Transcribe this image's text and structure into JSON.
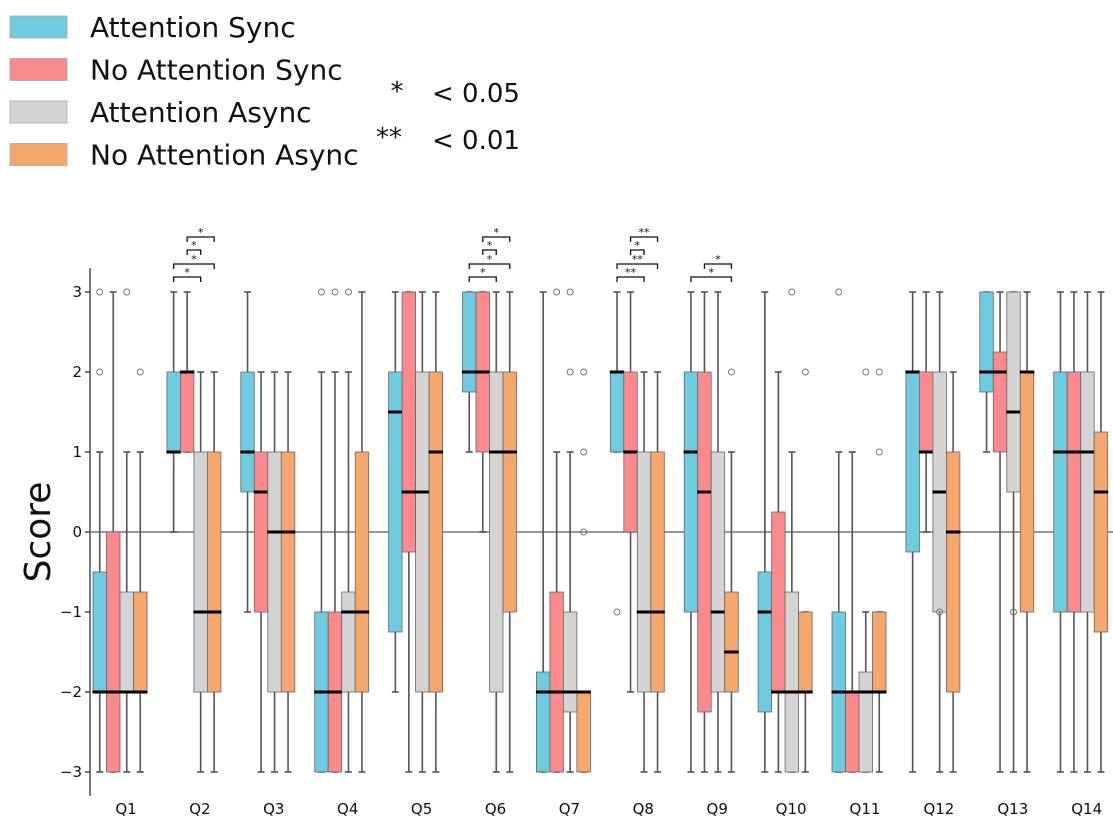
{
  "chart_data": {
    "type": "box",
    "title": "",
    "xlabel": "",
    "ylabel": "Score",
    "ylim": [
      -3,
      3
    ],
    "yticks": [
      -3,
      -2,
      -1,
      0,
      1,
      2,
      3
    ],
    "ytick_labels": [
      "−3",
      "−2",
      "−1",
      "0",
      "1",
      "2",
      "3"
    ],
    "reference_line_y": 0,
    "categories": [
      "Q1",
      "Q2",
      "Q3",
      "Q4",
      "Q5",
      "Q6",
      "Q7",
      "Q8",
      "Q9",
      "Q10",
      "Q11",
      "Q12",
      "Q13",
      "Q14"
    ],
    "legend_position": "top-left",
    "significance_legend": [
      {
        "symbol": "*",
        "label": "< 0.05"
      },
      {
        "symbol": "**",
        "label": "< 0.01"
      }
    ],
    "series": [
      {
        "name": "Attention Sync",
        "color": "#6ecbe0",
        "boxes": [
          {
            "whislo": -3,
            "q1": -2,
            "med": -2,
            "q3": -0.5,
            "whishi": 1,
            "fliers": [
              3,
              2
            ]
          },
          {
            "whislo": 0,
            "q1": 1,
            "med": 1,
            "q3": 2,
            "whishi": 3,
            "fliers": []
          },
          {
            "whislo": -1,
            "q1": 0.5,
            "med": 1,
            "q3": 2,
            "whishi": 3,
            "fliers": []
          },
          {
            "whislo": -3,
            "q1": -3,
            "med": -2,
            "q3": -1,
            "whishi": 2,
            "fliers": [
              3
            ]
          },
          {
            "whislo": -2,
            "q1": -1.25,
            "med": 1.5,
            "q3": 2,
            "whishi": 3,
            "fliers": []
          },
          {
            "whislo": 1,
            "q1": 1.75,
            "med": 2,
            "q3": 3,
            "whishi": 3,
            "fliers": []
          },
          {
            "whislo": -3,
            "q1": -3,
            "med": -2,
            "q3": -1.75,
            "whishi": 3,
            "fliers": []
          },
          {
            "whislo": 1,
            "q1": 1,
            "med": 2,
            "q3": 2,
            "whishi": 3,
            "fliers": [
              -1
            ]
          },
          {
            "whislo": -3,
            "q1": -1,
            "med": 1,
            "q3": 2,
            "whishi": 3,
            "fliers": []
          },
          {
            "whislo": -3,
            "q1": -2.25,
            "med": -1,
            "q3": -0.5,
            "whishi": 3,
            "fliers": []
          },
          {
            "whislo": -3,
            "q1": -3,
            "med": -2,
            "q3": -1,
            "whishi": 1,
            "fliers": [
              3
            ]
          },
          {
            "whislo": -3,
            "q1": -0.25,
            "med": 2,
            "q3": 2,
            "whishi": 3,
            "fliers": []
          },
          {
            "whislo": 1,
            "q1": 1.75,
            "med": 2,
            "q3": 3,
            "whishi": 3,
            "fliers": []
          },
          {
            "whislo": -3,
            "q1": -1,
            "med": 1,
            "q3": 2,
            "whishi": 3,
            "fliers": []
          }
        ]
      },
      {
        "name": "No Attention Sync",
        "color": "#fb8a8c",
        "boxes": [
          {
            "whislo": -3,
            "q1": -3,
            "med": -2,
            "q3": 0,
            "whishi": 3,
            "fliers": []
          },
          {
            "whislo": 1,
            "q1": 1,
            "med": 2,
            "q3": 2,
            "whishi": 3,
            "fliers": []
          },
          {
            "whislo": -3,
            "q1": -1,
            "med": 0.5,
            "q3": 1,
            "whishi": 2,
            "fliers": []
          },
          {
            "whislo": -3,
            "q1": -3,
            "med": -2,
            "q3": -1,
            "whishi": 2,
            "fliers": [
              3
            ]
          },
          {
            "whislo": -3,
            "q1": -0.25,
            "med": 0.5,
            "q3": 3,
            "whishi": 3,
            "fliers": []
          },
          {
            "whislo": 0,
            "q1": 1,
            "med": 2,
            "q3": 3,
            "whishi": 3,
            "fliers": []
          },
          {
            "whislo": -3,
            "q1": -3,
            "med": -2,
            "q3": -0.75,
            "whishi": 1,
            "fliers": [
              3
            ]
          },
          {
            "whislo": -2,
            "q1": 0,
            "med": 1,
            "q3": 2,
            "whishi": 3,
            "fliers": []
          },
          {
            "whislo": -3,
            "q1": -2.25,
            "med": 0.5,
            "q3": 2,
            "whishi": 3,
            "fliers": []
          },
          {
            "whislo": -3,
            "q1": -2,
            "med": -2,
            "q3": 0.25,
            "whishi": 2,
            "fliers": []
          },
          {
            "whislo": -3,
            "q1": -3,
            "med": -2,
            "q3": -2,
            "whishi": 1,
            "fliers": []
          },
          {
            "whislo": 0,
            "q1": 1,
            "med": 1,
            "q3": 2,
            "whishi": 3,
            "fliers": []
          },
          {
            "whislo": -3,
            "q1": 1,
            "med": 2,
            "q3": 2.25,
            "whishi": 3,
            "fliers": []
          },
          {
            "whislo": -3,
            "q1": -1,
            "med": 1,
            "q3": 2,
            "whishi": 3,
            "fliers": []
          }
        ]
      },
      {
        "name": "Attention Async",
        "color": "#d4d4d4",
        "boxes": [
          {
            "whislo": -3,
            "q1": -2,
            "med": -2,
            "q3": -0.75,
            "whishi": 1,
            "fliers": [
              3
            ]
          },
          {
            "whislo": -3,
            "q1": -2,
            "med": -1,
            "q3": 1,
            "whishi": 2,
            "fliers": []
          },
          {
            "whislo": -3,
            "q1": -2,
            "med": 0,
            "q3": 1,
            "whishi": 2,
            "fliers": []
          },
          {
            "whislo": -3,
            "q1": -2,
            "med": -1,
            "q3": -0.75,
            "whishi": 2,
            "fliers": [
              3
            ]
          },
          {
            "whislo": -3,
            "q1": -2,
            "med": 0.5,
            "q3": 2,
            "whishi": 3,
            "fliers": []
          },
          {
            "whislo": -3,
            "q1": -2,
            "med": 1,
            "q3": 2,
            "whishi": 3,
            "fliers": []
          },
          {
            "whislo": -3,
            "q1": -2.25,
            "med": -2,
            "q3": -1,
            "whishi": 1,
            "fliers": [
              3,
              2
            ]
          },
          {
            "whislo": -3,
            "q1": -2,
            "med": -1,
            "q3": 1,
            "whishi": 2,
            "fliers": []
          },
          {
            "whislo": -3,
            "q1": -2,
            "med": -1,
            "q3": 1,
            "whishi": 3,
            "fliers": []
          },
          {
            "whislo": -3,
            "q1": -3,
            "med": -2,
            "q3": -0.75,
            "whishi": 1,
            "fliers": [
              3
            ]
          },
          {
            "whislo": -3,
            "q1": -3,
            "med": -2,
            "q3": -1.75,
            "whishi": -1,
            "fliers": [
              2
            ]
          },
          {
            "whislo": -3,
            "q1": -1,
            "med": 0.5,
            "q3": 2,
            "whishi": 3,
            "fliers": [
              -1
            ]
          },
          {
            "whislo": -3,
            "q1": 0.5,
            "med": 1.5,
            "q3": 3,
            "whishi": 3,
            "fliers": [
              -1
            ]
          },
          {
            "whislo": -3,
            "q1": -1,
            "med": 1,
            "q3": 2,
            "whishi": 3,
            "fliers": []
          }
        ]
      },
      {
        "name": "No Attention Async",
        "color": "#f6a76d",
        "boxes": [
          {
            "whislo": -3,
            "q1": -2,
            "med": -2,
            "q3": -0.75,
            "whishi": 1,
            "fliers": [
              2
            ]
          },
          {
            "whislo": -3,
            "q1": -2,
            "med": -1,
            "q3": 1,
            "whishi": 2,
            "fliers": []
          },
          {
            "whislo": -3,
            "q1": -2,
            "med": 0,
            "q3": 1,
            "whishi": 2,
            "fliers": []
          },
          {
            "whislo": -3,
            "q1": -2,
            "med": -1,
            "q3": 1,
            "whishi": 3,
            "fliers": []
          },
          {
            "whislo": -3,
            "q1": -2,
            "med": 1,
            "q3": 2,
            "whishi": 3,
            "fliers": []
          },
          {
            "whislo": -3,
            "q1": -1,
            "med": 1,
            "q3": 2,
            "whishi": 3,
            "fliers": []
          },
          {
            "whislo": -3,
            "q1": -3,
            "med": -2,
            "q3": -2,
            "whishi": -2,
            "fliers": [
              2,
              1,
              0
            ]
          },
          {
            "whislo": -3,
            "q1": -2,
            "med": -1,
            "q3": 1,
            "whishi": 2,
            "fliers": []
          },
          {
            "whislo": -3,
            "q1": -2,
            "med": -1.5,
            "q3": -0.75,
            "whishi": 1,
            "fliers": [
              2
            ]
          },
          {
            "whislo": -3,
            "q1": -2,
            "med": -2,
            "q3": -1,
            "whishi": -1,
            "fliers": [
              2
            ]
          },
          {
            "whislo": -3,
            "q1": -2,
            "med": -2,
            "q3": -1,
            "whishi": -1,
            "fliers": [
              2,
              1
            ]
          },
          {
            "whislo": -3,
            "q1": -2,
            "med": 0,
            "q3": 1,
            "whishi": 2,
            "fliers": []
          },
          {
            "whislo": -3,
            "q1": -1,
            "med": 2,
            "q3": 2,
            "whishi": 3,
            "fliers": []
          },
          {
            "whislo": -3,
            "q1": -1.25,
            "med": 0.5,
            "q3": 1.25,
            "whishi": 3,
            "fliers": []
          }
        ]
      }
    ],
    "significance": [
      {
        "question": "Q2",
        "pairs": [
          {
            "from": 0,
            "to": 2,
            "label": "*"
          },
          {
            "from": 0,
            "to": 3,
            "label": "*"
          },
          {
            "from": 1,
            "to": 2,
            "label": "*"
          },
          {
            "from": 1,
            "to": 3,
            "label": "*"
          }
        ]
      },
      {
        "question": "Q6",
        "pairs": [
          {
            "from": 0,
            "to": 2,
            "label": "*"
          },
          {
            "from": 0,
            "to": 3,
            "label": "*"
          },
          {
            "from": 1,
            "to": 2,
            "label": "*"
          },
          {
            "from": 1,
            "to": 3,
            "label": "*"
          }
        ]
      },
      {
        "question": "Q8",
        "pairs": [
          {
            "from": 0,
            "to": 2,
            "label": "**"
          },
          {
            "from": 0,
            "to": 3,
            "label": "**"
          },
          {
            "from": 1,
            "to": 2,
            "label": "*"
          },
          {
            "from": 1,
            "to": 3,
            "label": "**"
          }
        ]
      },
      {
        "question": "Q9",
        "pairs": [
          {
            "from": 0,
            "to": 3,
            "label": "*"
          },
          {
            "from": 1,
            "to": 3,
            "label": "*"
          }
        ]
      }
    ]
  }
}
